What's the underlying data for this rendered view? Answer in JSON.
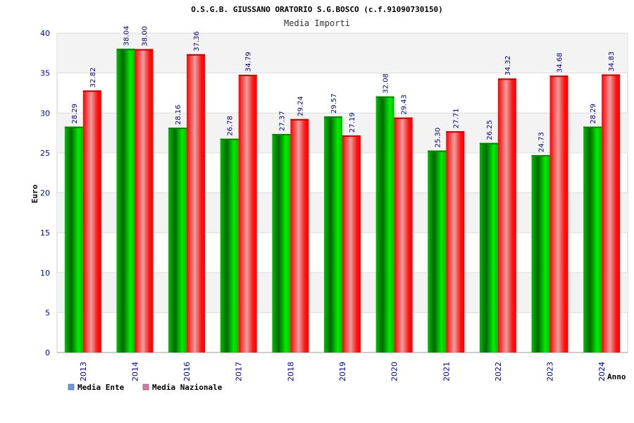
{
  "chart_data": {
    "type": "bar",
    "title": "O.S.G.B. GIUSSANO ORATORIO S.G.BOSCO (c.f.91090730150)",
    "subtitle": "Media Importi",
    "xlabel": "Anno",
    "ylabel": "Euro",
    "ylim": [
      0,
      40
    ],
    "yticks": [
      "0",
      "5",
      "10",
      "15",
      "20",
      "25",
      "30",
      "35",
      "40"
    ],
    "grid": true,
    "legend_position": "bottom-left",
    "categories": [
      "2013",
      "2014",
      "2016",
      "2017",
      "2018",
      "2019",
      "2020",
      "2021",
      "2022",
      "2023",
      "2024"
    ],
    "series": [
      {
        "name": "Media Ente",
        "color": "#00b000",
        "legend_color": "#6699ee",
        "values": [
          28.29,
          38.04,
          28.16,
          26.78,
          27.37,
          29.57,
          32.08,
          25.3,
          26.25,
          24.73,
          28.29
        ],
        "labels": [
          "28.29",
          "38.04",
          "28.16",
          "26.78",
          "27.37",
          "29.57",
          "32.08",
          "25.30",
          "26.25",
          "24.73",
          "28.29"
        ]
      },
      {
        "name": "Media Nazionale",
        "color": "#ee0000",
        "legend_color": "#dd77aa",
        "values": [
          32.82,
          38.0,
          37.36,
          34.79,
          29.24,
          27.19,
          29.43,
          27.71,
          34.32,
          34.68,
          34.83
        ],
        "labels": [
          "32.82",
          "38.00",
          "37.36",
          "34.79",
          "29.24",
          "27.19",
          "29.43",
          "27.71",
          "34.32",
          "34.68",
          "34.83"
        ]
      }
    ]
  }
}
